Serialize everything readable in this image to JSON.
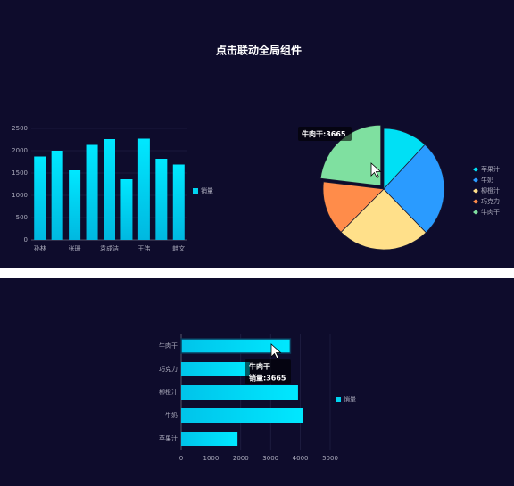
{
  "title": "点击联动全局组件",
  "chart_data": [
    {
      "type": "bar",
      "categories": [
        "孙林",
        null,
        "张珊",
        null,
        "袁成洁",
        null,
        "王伟",
        null,
        "韩文"
      ],
      "series": [
        {
          "name": "销量",
          "color": "#00d4f0",
          "values": [
            1870,
            2000,
            1560,
            2130,
            2260,
            1360,
            2270,
            1820,
            1690
          ]
        }
      ],
      "ylim": [
        0,
        2500
      ],
      "yticks": [
        0,
        500,
        1000,
        1500,
        2000,
        2500
      ],
      "grid": true,
      "legend": "right"
    },
    {
      "type": "pie",
      "categories": [
        "苹果汁",
        "牛奶",
        "柳橙汁",
        "巧克力",
        "牛肉干"
      ],
      "values": [
        1890,
        4100,
        3920,
        2300,
        3665
      ],
      "colors": [
        "#00e0f5",
        "#2a9bff",
        "#ffe08a",
        "#ff8c4a",
        "#7fe0a0"
      ],
      "tooltip": "牛肉干:3665",
      "legend": "right"
    },
    {
      "type": "hbar",
      "categories": [
        "苹果汁",
        "牛奶",
        "柳橙汁",
        "巧克力",
        "牛肉干"
      ],
      "series": [
        {
          "name": "销量",
          "color": "#00d4f0",
          "values": [
            1890,
            4100,
            3920,
            2300,
            3665
          ]
        }
      ],
      "xlim": [
        0,
        5000
      ],
      "xticks": [
        0,
        1000,
        2000,
        3000,
        4000,
        5000
      ],
      "grid": true,
      "legend": "right",
      "tooltip": {
        "title": "牛肉干",
        "text": "销量:3665"
      }
    }
  ]
}
